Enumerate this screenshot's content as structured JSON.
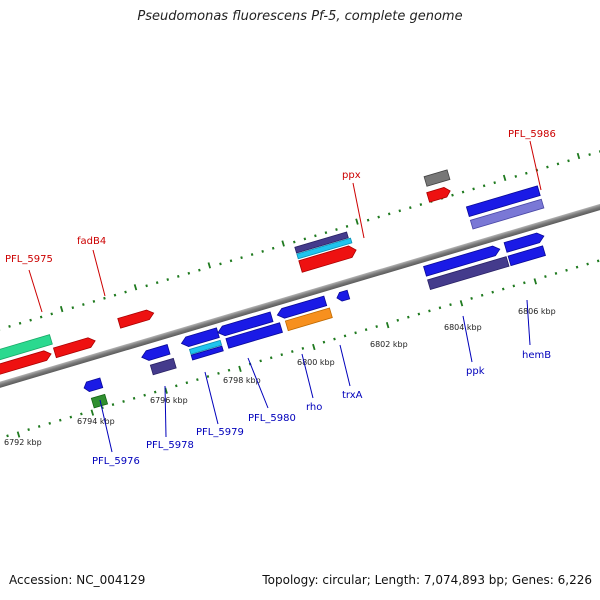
{
  "title": "Pseudomonas fluorescens Pf-5, complete genome",
  "footer": {
    "accession_text": "Accession: NC_004129",
    "stats_text": "Topology: circular; Length: 7,074,893 bp; Genes: 6,226"
  },
  "colors": {
    "forward_label": "#cc0000",
    "reverse_label": "#0000bb",
    "backbone": "#8a8a8a",
    "tick": "#1f7a1f"
  },
  "kbp_labels": [
    "6792 kbp",
    "6794 kbp",
    "6796 kbp",
    "6798 kbp",
    "6800 kbp",
    "6802 kbp",
    "6804 kbp",
    "6806 kbp"
  ],
  "forward_labels": [
    {
      "name": "PFL_5975"
    },
    {
      "name": "fadB4"
    },
    {
      "name": "ppx"
    },
    {
      "name": "PFL_5986"
    }
  ],
  "reverse_labels": [
    {
      "name": "PFL_5976"
    },
    {
      "name": "PFL_5978"
    },
    {
      "name": "PFL_5979"
    },
    {
      "name": "PFL_5980"
    },
    {
      "name": "rho"
    },
    {
      "name": "trxA"
    },
    {
      "name": "ppk"
    },
    {
      "name": "hemB"
    }
  ]
}
